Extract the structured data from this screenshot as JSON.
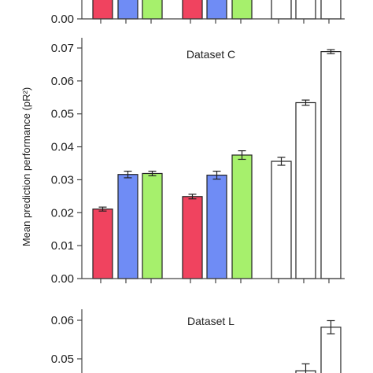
{
  "chart_data": [
    {
      "type": "bar",
      "title": "",
      "ylabel": "",
      "ylim": [
        0,
        0.005
      ],
      "yticks": [
        "0.00"
      ],
      "groups": 3,
      "bars": [
        {
          "group": 0,
          "value": 0.006,
          "error": 0,
          "color": "#f0435f"
        },
        {
          "group": 0,
          "value": 0.006,
          "error": 0,
          "color": "#6f8cf5"
        },
        {
          "group": 0,
          "value": 0.006,
          "error": 0,
          "color": "#a6f06c"
        },
        {
          "group": 1,
          "value": 0.006,
          "error": 0,
          "color": "#f0435f"
        },
        {
          "group": 1,
          "value": 0.006,
          "error": 0,
          "color": "#6f8cf5"
        },
        {
          "group": 1,
          "value": 0.006,
          "error": 0,
          "color": "#a6f06c"
        },
        {
          "group": 2,
          "value": 0.006,
          "error": 0,
          "color": "#ffffff"
        },
        {
          "group": 2,
          "value": 0.006,
          "error": 0,
          "color": "#ffffff"
        },
        {
          "group": 2,
          "value": 0.006,
          "error": 0,
          "color": "#ffffff"
        }
      ]
    },
    {
      "type": "bar",
      "title": "Dataset C",
      "ylabel": "Mean prediction performance (pR²)",
      "ylim": [
        0,
        0.072
      ],
      "yticks": [
        "0.00",
        "0.01",
        "0.02",
        "0.03",
        "0.04",
        "0.05",
        "0.06",
        "0.07"
      ],
      "groups": 3,
      "bars": [
        {
          "group": 0,
          "value": 0.0211,
          "error": 0.0006,
          "color": "#f0435f"
        },
        {
          "group": 0,
          "value": 0.0316,
          "error": 0.001,
          "color": "#6f8cf5"
        },
        {
          "group": 0,
          "value": 0.0319,
          "error": 0.0007,
          "color": "#a6f06c"
        },
        {
          "group": 1,
          "value": 0.0249,
          "error": 0.0007,
          "color": "#f0435f"
        },
        {
          "group": 1,
          "value": 0.0314,
          "error": 0.0012,
          "color": "#6f8cf5"
        },
        {
          "group": 1,
          "value": 0.0375,
          "error": 0.0013,
          "color": "#a6f06c"
        },
        {
          "group": 2,
          "value": 0.0356,
          "error": 0.0012,
          "color": "#ffffff"
        },
        {
          "group": 2,
          "value": 0.0534,
          "error": 0.0008,
          "color": "#ffffff"
        },
        {
          "group": 2,
          "value": 0.0689,
          "error": 0.0006,
          "color": "#ffffff"
        }
      ]
    },
    {
      "type": "bar",
      "title": "Dataset L",
      "ylabel": "",
      "ylim": [
        0.045,
        0.062
      ],
      "yticks": [
        "0.05",
        "0.06"
      ],
      "groups": 3,
      "bars": [
        {
          "group": 2,
          "value": 0.0469,
          "error": 0.0018,
          "color": "#ffffff"
        },
        {
          "group": 2,
          "value": 0.0582,
          "error": 0.0017,
          "color": "#ffffff"
        }
      ]
    }
  ]
}
